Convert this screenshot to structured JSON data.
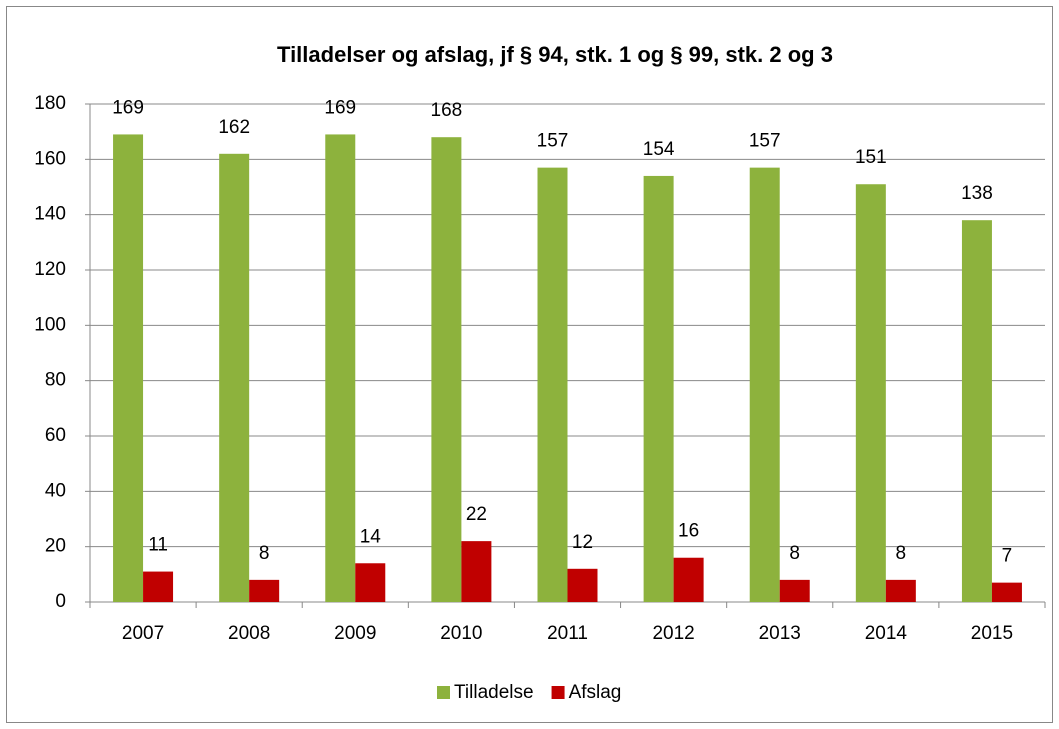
{
  "chart_data": {
    "type": "bar",
    "title": "Tilladelser og afslag, jf § 94, stk. 1 og § 99, stk. 2 og 3",
    "categories": [
      "2007",
      "2008",
      "2009",
      "2010",
      "2011",
      "2012",
      "2013",
      "2014",
      "2015"
    ],
    "series": [
      {
        "name": "Tilladelse",
        "color": "#8db23d",
        "values": [
          169,
          162,
          169,
          168,
          157,
          154,
          157,
          151,
          138
        ]
      },
      {
        "name": "Afslag",
        "color": "#c00000",
        "values": [
          11,
          8,
          14,
          22,
          12,
          16,
          8,
          8,
          7
        ]
      }
    ],
    "ylim": [
      0,
      180
    ],
    "yticks": [
      0,
      20,
      40,
      60,
      80,
      100,
      120,
      140,
      160,
      180
    ],
    "grid": true,
    "legend": "bottom"
  }
}
